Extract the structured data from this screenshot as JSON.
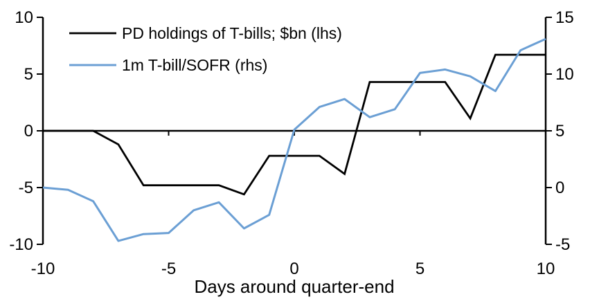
{
  "chart_data": {
    "type": "line",
    "title": "",
    "xlabel": "Days around quarter-end",
    "ylabel_left": "",
    "ylabel_right": "",
    "grid": false,
    "legend_position": "top-left",
    "x": [
      -10,
      -9,
      -8,
      -7,
      -6,
      -5,
      -4,
      -3,
      -2,
      -1,
      0,
      1,
      2,
      3,
      4,
      5,
      6,
      7,
      8,
      9,
      10
    ],
    "series": [
      {
        "name": "PD holdings of T-bills; $bn (lhs)",
        "axis": "left",
        "color": "#000000",
        "values": [
          0,
          0,
          0,
          -1.2,
          -4.8,
          -4.8,
          -4.8,
          -4.8,
          -5.6,
          -2.2,
          -2.2,
          -2.2,
          -3.8,
          4.3,
          4.3,
          4.3,
          4.3,
          1.1,
          6.7,
          6.7,
          6.7
        ]
      },
      {
        "name": "1m T-bill/SOFR (rhs)",
        "axis": "right",
        "color": "#6B9FD4",
        "values": [
          0.0,
          -0.2,
          -1.2,
          -4.7,
          -4.1,
          -4.0,
          -2.0,
          -1.3,
          -3.6,
          -2.4,
          5.1,
          7.1,
          7.8,
          6.2,
          6.9,
          10.1,
          10.4,
          9.8,
          8.5,
          12.1,
          13.1
        ]
      }
    ],
    "left_axis": {
      "ticks": [
        10,
        5,
        0,
        -5,
        -10
      ],
      "range": [
        -10,
        10
      ]
    },
    "right_axis": {
      "ticks": [
        15,
        10,
        5,
        0,
        -5
      ],
      "range": [
        -5,
        15
      ]
    },
    "x_axis": {
      "ticks": [
        -10,
        -5,
        0,
        5,
        10
      ],
      "range": [
        -10,
        10
      ]
    }
  },
  "colors": {
    "background": "#ffffff",
    "axis": "#000000"
  }
}
